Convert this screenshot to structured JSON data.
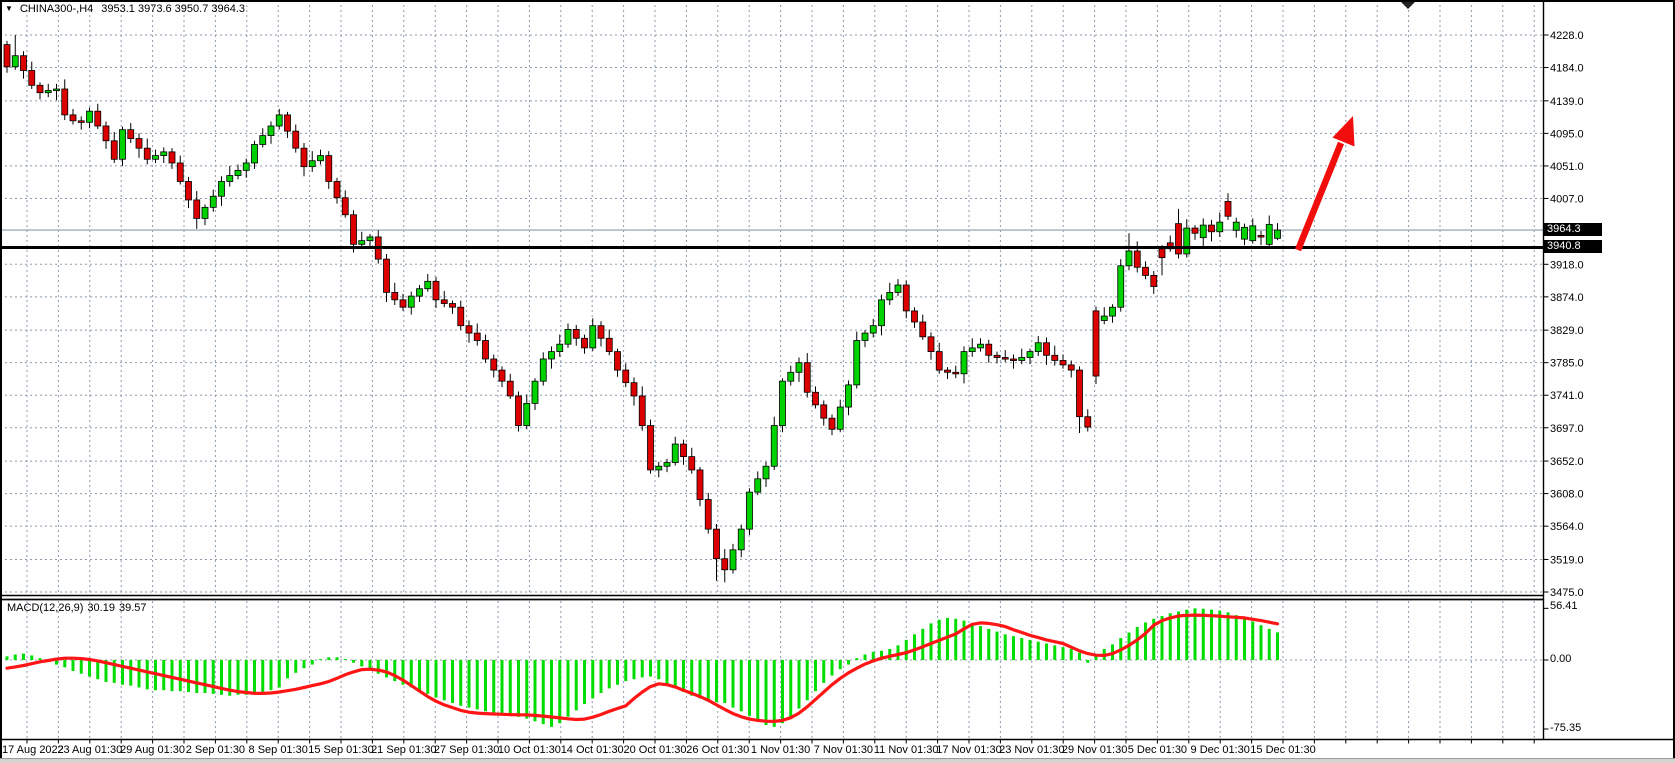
{
  "header": {
    "dropdown_icon": "▼",
    "symbol_period": "CHINA300-,H4",
    "ohlc": "3953.1 3973.6 3950.7 3964.3"
  },
  "indicator": {
    "name": "MACD(12,26,9)",
    "value": "30.19",
    "signal": "39.57"
  },
  "price_axis": {
    "current_tag": "3964.3",
    "hline_tag": "3940.8",
    "tick_labels": [
      "4228.0",
      "4184.0",
      "4139.0",
      "4095.0",
      "4051.0",
      "4007.0",
      "3918.0",
      "3874.0",
      "3829.0",
      "3785.0",
      "3741.0",
      "3697.0",
      "3652.0",
      "3608.0",
      "3564.0",
      "3519.0",
      "3475.0"
    ]
  },
  "macd_axis": {
    "max": "56.41",
    "zero": "0.00",
    "min": "-75.35"
  },
  "colors": {
    "background": "#ffffff",
    "grid": "#8b9bac",
    "bull": "#00d200",
    "bear": "#dd0000",
    "outline": "#000000",
    "wick": "#000000",
    "macd_histogram": "#00dd00",
    "macd_signal": "#ff1515",
    "arrow": "#f20d0d",
    "support_line": "#000000",
    "current_price_line": "#9fadba",
    "tag_bg": "#000000",
    "tag_text": "#ffffff",
    "border": "#000000",
    "chrome": "#d6d3ce"
  },
  "chart_data": [
    {
      "type": "candlestick",
      "title": "CHINA300-,H4",
      "symbol": "CHINA300-",
      "timeframe": "H4",
      "last_bar": {
        "open": 3953.1,
        "high": 3973.6,
        "low": 3950.7,
        "close": 3964.3
      },
      "ylim": [
        3475.0,
        4228.0
      ],
      "y_gridlines": [
        4228,
        4184,
        4139,
        4095,
        4051,
        4007,
        3918,
        3874,
        3829,
        3785,
        3741,
        3697,
        3652,
        3608,
        3564,
        3519,
        3475
      ],
      "x_labels": [
        "17 Aug 2022",
        "23 Aug 01:30",
        "29 Aug 01:30",
        "2 Sep 01:30",
        "8 Sep 01:30",
        "15 Sep 01:30",
        "21 Sep 01:30",
        "27 Sep 01:30",
        "10 Oct 01:30",
        "14 Oct 01:30",
        "20 Oct 01:30",
        "26 Oct 01:30",
        "1 Nov 01:30",
        "7 Nov 01:30",
        "11 Nov 01:30",
        "17 Nov 01:30",
        "23 Nov 01:30",
        "29 Nov 01:30",
        "5 Dec 01:30",
        "9 Dec 01:30",
        "15 Dec 01:30"
      ],
      "grid": true,
      "overlays": {
        "horizontal_line": 3940.8,
        "current_price": 3964.3,
        "arrow": {
          "type": "up-trend-arrow",
          "from_price": 3938,
          "to_price": 4104
        }
      },
      "candles": [
        [
          4215,
          4220,
          4177,
          4185
        ],
        [
          4185,
          4228,
          4181,
          4200
        ],
        [
          4200,
          4206,
          4169,
          4180
        ],
        [
          4180,
          4192,
          4155,
          4160
        ],
        [
          4160,
          4164,
          4141,
          4150
        ],
        [
          4150,
          4162,
          4144,
          4153
        ],
        [
          4153,
          4162,
          4140,
          4155
        ],
        [
          4155,
          4168,
          4113,
          4120
        ],
        [
          4120,
          4128,
          4107,
          4112
        ],
        [
          4112,
          4118,
          4100,
          4110
        ],
        [
          4110,
          4130,
          4102,
          4125
        ],
        [
          4125,
          4135,
          4101,
          4105
        ],
        [
          4105,
          4111,
          4074,
          4085
        ],
        [
          4085,
          4097,
          4055,
          4060
        ],
        [
          4060,
          4104,
          4051,
          4100
        ],
        [
          4100,
          4109,
          4082,
          4088
        ],
        [
          4088,
          4095,
          4062,
          4075
        ],
        [
          4075,
          4088,
          4053,
          4060
        ],
        [
          4060,
          4073,
          4055,
          4065
        ],
        [
          4065,
          4076,
          4055,
          4070
        ],
        [
          4070,
          4075,
          4047,
          4055
        ],
        [
          4055,
          4065,
          4026,
          4030
        ],
        [
          4030,
          4036,
          3994,
          4005
        ],
        [
          4005,
          4017,
          3966,
          3980
        ],
        [
          3980,
          3999,
          3971,
          3995
        ],
        [
          3995,
          4019,
          3989,
          4010
        ],
        [
          4010,
          4037,
          3997,
          4030
        ],
        [
          4030,
          4051,
          4023,
          4038
        ],
        [
          4038,
          4053,
          4033,
          4045
        ],
        [
          4045,
          4061,
          4035,
          4055
        ],
        [
          4055,
          4085,
          4047,
          4080
        ],
        [
          4080,
          4102,
          4076,
          4092
        ],
        [
          4092,
          4111,
          4081,
          4105
        ],
        [
          4105,
          4128,
          4100,
          4120
        ],
        [
          4120,
          4124,
          4089,
          4098
        ],
        [
          4098,
          4107,
          4069,
          4075
        ],
        [
          4075,
          4082,
          4037,
          4050
        ],
        [
          4050,
          4071,
          4043,
          4058
        ],
        [
          4058,
          4073,
          4053,
          4065
        ],
        [
          4065,
          4071,
          4020,
          4030
        ],
        [
          4030,
          4035,
          4000,
          4008
        ],
        [
          4008,
          4018,
          3981,
          3985
        ],
        [
          3985,
          3991,
          3934,
          3945
        ],
        [
          3945,
          3962,
          3940,
          3950
        ],
        [
          3950,
          3959,
          3941,
          3955
        ],
        [
          3955,
          3964,
          3919,
          3925
        ],
        [
          3925,
          3932,
          3867,
          3880
        ],
        [
          3880,
          3893,
          3863,
          3870
        ],
        [
          3870,
          3878,
          3855,
          3860
        ],
        [
          3860,
          3881,
          3850,
          3875
        ],
        [
          3875,
          3890,
          3867,
          3885
        ],
        [
          3885,
          3905,
          3881,
          3895
        ],
        [
          3895,
          3901,
          3859,
          3870
        ],
        [
          3870,
          3882,
          3860,
          3865
        ],
        [
          3865,
          3869,
          3851,
          3860
        ],
        [
          3860,
          3869,
          3829,
          3835
        ],
        [
          3835,
          3842,
          3812,
          3825
        ],
        [
          3825,
          3838,
          3808,
          3815
        ],
        [
          3815,
          3823,
          3785,
          3790
        ],
        [
          3790,
          3796,
          3765,
          3775
        ],
        [
          3775,
          3780,
          3752,
          3760
        ],
        [
          3760,
          3770,
          3736,
          3740
        ],
        [
          3740,
          3746,
          3692,
          3700
        ],
        [
          3700,
          3742,
          3695,
          3730
        ],
        [
          3730,
          3764,
          3721,
          3760
        ],
        [
          3760,
          3799,
          3754,
          3790
        ],
        [
          3790,
          3807,
          3777,
          3800
        ],
        [
          3800,
          3823,
          3793,
          3810
        ],
        [
          3810,
          3838,
          3805,
          3830
        ],
        [
          3830,
          3836,
          3808,
          3818
        ],
        [
          3818,
          3823,
          3797,
          3805
        ],
        [
          3805,
          3845,
          3801,
          3835
        ],
        [
          3835,
          3841,
          3807,
          3818
        ],
        [
          3818,
          3830,
          3795,
          3800
        ],
        [
          3800,
          3804,
          3766,
          3775
        ],
        [
          3775,
          3784,
          3752,
          3758
        ],
        [
          3758,
          3765,
          3727,
          3740
        ],
        [
          3740,
          3753,
          3693,
          3700
        ],
        [
          3700,
          3708,
          3635,
          3640
        ],
        [
          3640,
          3651,
          3630,
          3645
        ],
        [
          3645,
          3655,
          3637,
          3650
        ],
        [
          3650,
          3685,
          3646,
          3675
        ],
        [
          3675,
          3681,
          3647,
          3658
        ],
        [
          3658,
          3670,
          3635,
          3640
        ],
        [
          3640,
          3644,
          3591,
          3600
        ],
        [
          3600,
          3609,
          3554,
          3560
        ],
        [
          3560,
          3567,
          3490,
          3520
        ],
        [
          3520,
          3533,
          3488,
          3505
        ],
        [
          3505,
          3540,
          3500,
          3532
        ],
        [
          3532,
          3566,
          3522,
          3560
        ],
        [
          3560,
          3615,
          3552,
          3610
        ],
        [
          3610,
          3638,
          3606,
          3628
        ],
        [
          3628,
          3651,
          3617,
          3645
        ],
        [
          3645,
          3712,
          3640,
          3700
        ],
        [
          3700,
          3764,
          3691,
          3760
        ],
        [
          3760,
          3781,
          3754,
          3772
        ],
        [
          3772,
          3792,
          3759,
          3785
        ],
        [
          3785,
          3798,
          3738,
          3745
        ],
        [
          3745,
          3753,
          3723,
          3728
        ],
        [
          3728,
          3734,
          3700,
          3710
        ],
        [
          3710,
          3715,
          3687,
          3695
        ],
        [
          3695,
          3735,
          3691,
          3725
        ],
        [
          3725,
          3761,
          3714,
          3755
        ],
        [
          3755,
          3827,
          3750,
          3815
        ],
        [
          3815,
          3829,
          3806,
          3825
        ],
        [
          3825,
          3844,
          3819,
          3835
        ],
        [
          3835,
          3877,
          3822,
          3870
        ],
        [
          3870,
          3893,
          3863,
          3880
        ],
        [
          3880,
          3898,
          3875,
          3890
        ],
        [
          3890,
          3896,
          3845,
          3855
        ],
        [
          3855,
          3860,
          3832,
          3840
        ],
        [
          3840,
          3850,
          3816,
          3820
        ],
        [
          3820,
          3826,
          3789,
          3800
        ],
        [
          3800,
          3812,
          3770,
          3775
        ],
        [
          3775,
          3779,
          3763,
          3772
        ],
        [
          3772,
          3781,
          3764,
          3770
        ],
        [
          3770,
          3807,
          3757,
          3800
        ],
        [
          3800,
          3818,
          3793,
          3805
        ],
        [
          3805,
          3818,
          3800,
          3810
        ],
        [
          3810,
          3816,
          3785,
          3795
        ],
        [
          3795,
          3800,
          3784,
          3792
        ],
        [
          3792,
          3802,
          3786,
          3790
        ],
        [
          3790,
          3796,
          3777,
          3788
        ],
        [
          3788,
          3804,
          3783,
          3792
        ],
        [
          3792,
          3804,
          3783,
          3800
        ],
        [
          3800,
          3821,
          3794,
          3812
        ],
        [
          3812,
          3819,
          3782,
          3795
        ],
        [
          3795,
          3808,
          3781,
          3788
        ],
        [
          3788,
          3796,
          3777,
          3782
        ],
        [
          3782,
          3788,
          3765,
          3775
        ],
        [
          3775,
          3780,
          3690,
          3712
        ],
        [
          3712,
          3722,
          3692,
          3698
        ],
        [
          3855,
          3861,
          3756,
          3767
        ],
        [
          3842,
          3860,
          3837,
          3848
        ],
        [
          3848,
          3864,
          3839,
          3860
        ],
        [
          3860,
          3925,
          3854,
          3916
        ],
        [
          3916,
          3960,
          3910,
          3936
        ],
        [
          3936,
          3949,
          3907,
          3914
        ],
        [
          3914,
          3922,
          3898,
          3903
        ],
        [
          3903,
          3909,
          3878,
          3888
        ],
        [
          3939,
          3944,
          3903,
          3927
        ],
        [
          3947,
          3957,
          3935,
          3939
        ],
        [
          3973,
          3993,
          3926,
          3932
        ],
        [
          3932,
          3979,
          3927,
          3967
        ],
        [
          3967,
          3971,
          3951,
          3960
        ],
        [
          3954,
          3980,
          3940,
          3971
        ],
        [
          3971,
          3978,
          3949,
          3962
        ],
        [
          3962,
          3988,
          3955,
          3975
        ],
        [
          4003,
          4014,
          3978,
          3983
        ],
        [
          3964,
          3981,
          3954,
          3975
        ],
        [
          3952,
          3973,
          3944,
          3968
        ],
        [
          3950,
          3980,
          3946,
          3970
        ],
        [
          3957,
          3963,
          3944,
          3955
        ],
        [
          3945,
          3984,
          3940,
          3972
        ],
        [
          3953.1,
          3973.6,
          3950.7,
          3964.3
        ]
      ]
    },
    {
      "type": "bar",
      "name": "MACD(12,26,9)",
      "current_value": 30.19,
      "current_signal": 39.57,
      "ylim": [
        -75.35,
        56.41
      ],
      "y_ticks": [
        56.41,
        0.0,
        -75.35
      ],
      "histogram": [
        4,
        6,
        7,
        5,
        2,
        -2,
        -5,
        -8,
        -12,
        -15,
        -18,
        -21,
        -24,
        -25,
        -27,
        -28,
        -30,
        -32,
        -33,
        -33,
        -34,
        -34,
        -35,
        -36,
        -36,
        -37,
        -38,
        -39,
        -38,
        -38,
        -37,
        -36,
        -33,
        -30,
        -20,
        -14,
        -9,
        -5,
        1,
        3,
        3,
        1,
        -3,
        -7,
        -11,
        -15,
        -19,
        -23,
        -27,
        -30,
        -34,
        -37,
        -41,
        -44,
        -47,
        -50,
        -52,
        -54,
        -56,
        -58,
        -59,
        -60,
        -62,
        -64,
        -67,
        -70,
        -73,
        -69,
        -62,
        -55,
        -48,
        -42,
        -36,
        -31,
        -27,
        -23,
        -21,
        -19,
        -18,
        -21,
        -26,
        -31,
        -35,
        -39,
        -42,
        -44,
        -46,
        -47,
        -52,
        -56,
        -61,
        -66,
        -71,
        -73,
        -69,
        -62,
        -53,
        -44,
        -34,
        -25,
        -17,
        -10,
        -5,
        2,
        6,
        9,
        10,
        12,
        16,
        22,
        28,
        34,
        40,
        44,
        46,
        45,
        43,
        40,
        37,
        34,
        31,
        28,
        26,
        24,
        22,
        20,
        18,
        16,
        14,
        12,
        8,
        -3,
        4,
        12,
        17,
        24,
        30,
        36,
        41,
        45,
        48,
        51,
        53,
        55,
        56.41,
        56,
        55,
        54,
        52,
        49,
        46,
        42,
        38,
        34,
        30.19
      ],
      "signal": [
        -9,
        -7.5,
        -6,
        -4,
        -2,
        -0.5,
        1,
        2,
        2,
        1.5,
        0.5,
        -1,
        -3,
        -5,
        -7,
        -9,
        -11,
        -13,
        -15,
        -17,
        -19,
        -21,
        -23,
        -25,
        -27,
        -29,
        -31,
        -33,
        -34.5,
        -35.5,
        -36.5,
        -36.5,
        -36,
        -35,
        -33.5,
        -32,
        -30,
        -28,
        -26,
        -23.5,
        -20,
        -16,
        -13,
        -10.5,
        -10,
        -11,
        -13,
        -17,
        -22,
        -28,
        -34,
        -40,
        -45,
        -49,
        -52,
        -55,
        -57,
        -58,
        -58.5,
        -59,
        -59.3,
        -59.6,
        -59.8,
        -60,
        -60.5,
        -61.3,
        -62.2,
        -63.2,
        -64.2,
        -65,
        -64.5,
        -62.5,
        -59.5,
        -56,
        -53,
        -50,
        -42,
        -35,
        -29,
        -26,
        -27,
        -29.5,
        -33,
        -36.5,
        -40,
        -44,
        -49,
        -54,
        -58.5,
        -62,
        -64.5,
        -66,
        -66.8,
        -67,
        -66,
        -63,
        -58,
        -51,
        -43,
        -35,
        -27,
        -20,
        -14,
        -9,
        -4.5,
        -1,
        2,
        4,
        6,
        8,
        11,
        14.5,
        18,
        21.5,
        25,
        28.5,
        34,
        39,
        40.5,
        40,
        38.5,
        36.5,
        33,
        30,
        27,
        24.5,
        22,
        20,
        18,
        14,
        10,
        7,
        5.2,
        5,
        7,
        11,
        16,
        22,
        29,
        38,
        43,
        46,
        48,
        48.8,
        49,
        48.8,
        48.4,
        47.8,
        47.2,
        46.6,
        46,
        44.5,
        43,
        41.3,
        39.57
      ]
    }
  ]
}
